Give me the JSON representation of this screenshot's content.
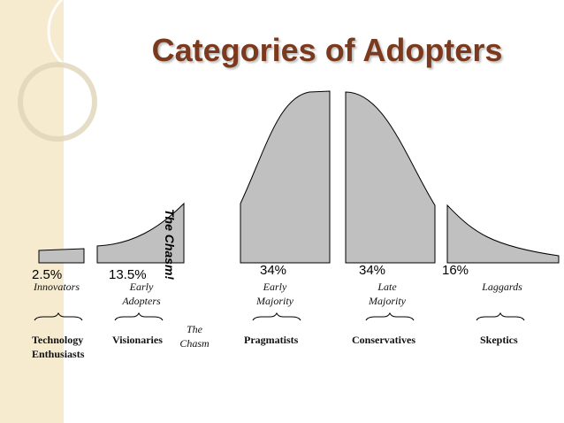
{
  "title": "Categories of Adopters",
  "chasm_vertical": "The Chasm!",
  "chasm_label_line1": "The",
  "chasm_label_line2": "Chasm",
  "segments": [
    {
      "percent": "2.5%",
      "category_line1": "Innovators",
      "category_line2": "",
      "descriptor_line1": "Technology",
      "descriptor_line2": "Enthusiasts"
    },
    {
      "percent": "13.5%",
      "category_line1": "Early",
      "category_line2": "Adopters",
      "descriptor_line1": "Visionaries",
      "descriptor_line2": ""
    },
    {
      "percent": "34%",
      "category_line1": "Early",
      "category_line2": "Majority",
      "descriptor_line1": "Pragmatists",
      "descriptor_line2": ""
    },
    {
      "percent": "34%",
      "category_line1": "Late",
      "category_line2": "Majority",
      "descriptor_line1": "Conservatives",
      "descriptor_line2": ""
    },
    {
      "percent": "16%",
      "category_line1": "Laggards",
      "category_line2": "",
      "descriptor_line1": "Skeptics",
      "descriptor_line2": ""
    }
  ],
  "colors": {
    "title": "#7b3a1d",
    "band": "#f6ebcf",
    "curve_fill": "#c0c0c0"
  }
}
